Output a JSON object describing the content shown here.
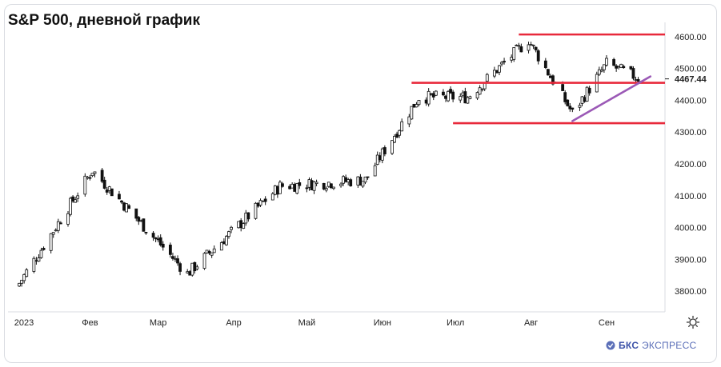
{
  "title": "S&P 500, дневной график",
  "brand": {
    "strong": "БКС",
    "rest": "ЭКСПРЕСС"
  },
  "colors": {
    "up": "#111111",
    "down": "#111111",
    "hline": "#e8293b",
    "trend": "#9b59b6",
    "axis": "#d8dbe0",
    "price_bg": "#ffffff"
  },
  "icons": {
    "settings": "gear-icon",
    "brand_logo": "bks-logo-icon"
  },
  "chart_data": {
    "type": "candlestick",
    "title": "S&P 500, дневной график",
    "ylim": [
      3740,
      4640
    ],
    "y_ticks": [
      "4600.00",
      "4500.00",
      "4400.00",
      "4300.00",
      "4200.00",
      "4100.00",
      "4000.00",
      "3900.00",
      "3800.00"
    ],
    "x_tick_labels": [
      "2023",
      "Фев",
      "Мар",
      "Апр",
      "Май",
      "Июн",
      "Июл",
      "Авг",
      "Сен"
    ],
    "current_price": "4467.44",
    "key_points": [
      {
        "date": "2023-01-03",
        "close": 3825
      },
      {
        "date": "2023-02-02",
        "close": 4180
      },
      {
        "date": "2023-03-13",
        "close": 3855
      },
      {
        "date": "2023-04-20",
        "close": 4130
      },
      {
        "date": "2023-05-25",
        "close": 4150
      },
      {
        "date": "2023-06-16",
        "close": 4410
      },
      {
        "date": "2023-07-06",
        "close": 4410
      },
      {
        "date": "2023-07-31",
        "close": 4590
      },
      {
        "date": "2023-08-18",
        "close": 4360
      },
      {
        "date": "2023-09-01",
        "close": 4515
      },
      {
        "date": "2023-09-15",
        "close": 4467
      }
    ],
    "horizontal_levels": [
      4607,
      4455,
      4328
    ],
    "trendline": {
      "from": {
        "date": "2023-08-18",
        "value": 4335
      },
      "to": {
        "date": "2023-09-19",
        "value": 4475
      }
    }
  }
}
